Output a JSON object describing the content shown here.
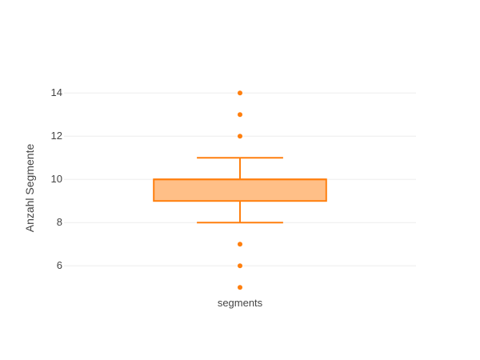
{
  "chart_data": {
    "type": "box",
    "title": "",
    "xlabel": "",
    "ylabel": "Anzahl Segmente",
    "categories": [
      "segments"
    ],
    "ylim": [
      4.6,
      14.6
    ],
    "yticks": [
      6,
      8,
      10,
      12,
      14
    ],
    "grid": true,
    "series": [
      {
        "category": "segments",
        "min": 8,
        "q1": 9,
        "median": 10,
        "q3": 10,
        "max": 11,
        "outliers": [
          5,
          6,
          7,
          12,
          13,
          14
        ]
      }
    ],
    "colors": {
      "line": "#ff7f0e",
      "fill": "#ffbf87",
      "grid": "#eeeeee",
      "text": "#444444"
    }
  }
}
